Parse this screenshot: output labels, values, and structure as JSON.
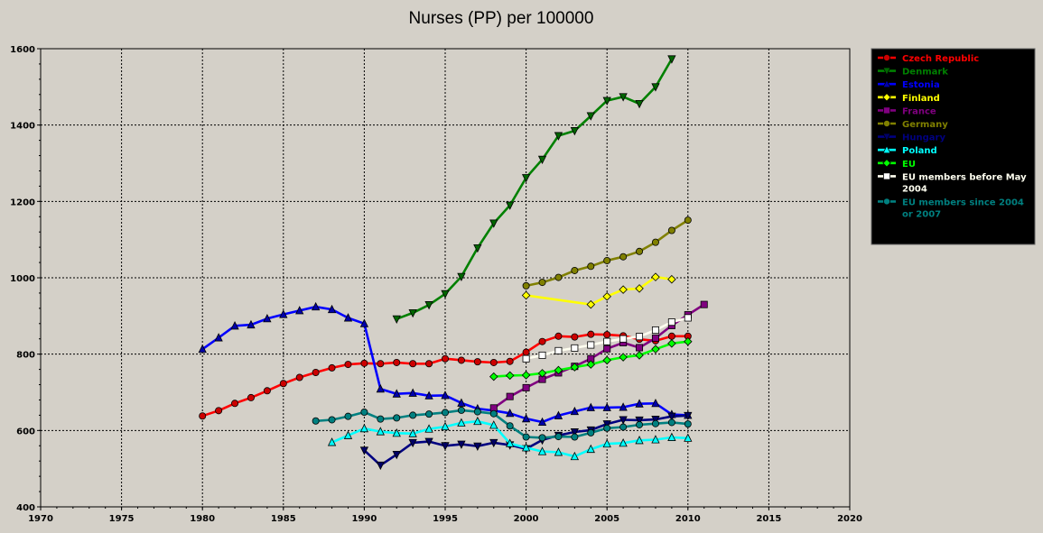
{
  "chart_data": {
    "type": "line",
    "title": "Nurses (PP) per 100000",
    "xlabel": "",
    "ylabel": "",
    "xlim": [
      1970,
      2020
    ],
    "ylim": [
      400,
      1600
    ],
    "x_ticks": [
      "1970",
      "1975",
      "1980",
      "1985",
      "1990",
      "1995",
      "2000",
      "2005",
      "2010",
      "2015",
      "2020"
    ],
    "y_ticks": [
      "400",
      "600",
      "800",
      "1000",
      "1200",
      "1400",
      "1600"
    ],
    "grid": true,
    "legend_position": "right",
    "series": [
      {
        "name": "Czech Republic",
        "color": "#ff0000",
        "marker": "circle",
        "marker_fill": "#cc0000",
        "x": [
          1980,
          1981,
          1982,
          1983,
          1984,
          1985,
          1986,
          1987,
          1988,
          1989,
          1990,
          1991,
          1992,
          1993,
          1994,
          1995,
          1996,
          1997,
          1998,
          1999,
          2000,
          2001,
          2002,
          2003,
          2004,
          2005,
          2006,
          2007,
          2008,
          2009,
          2010
        ],
        "y": [
          638,
          652,
          671,
          686,
          704,
          723,
          739,
          752,
          764,
          773,
          776,
          775,
          778,
          775,
          775,
          788,
          784,
          780,
          778,
          781,
          805,
          833,
          847,
          845,
          852,
          851,
          848,
          839,
          835,
          847,
          847
        ]
      },
      {
        "name": "Denmark",
        "color": "#008000",
        "marker": "tri-down",
        "marker_fill": "#006600",
        "x": [
          1992,
          1993,
          1994,
          1995,
          1996,
          1997,
          1998,
          1999,
          2000,
          2001,
          2002,
          2003,
          2004,
          2005,
          2006,
          2007,
          2008,
          2009
        ],
        "y": [
          892,
          908,
          929,
          958,
          1003,
          1078,
          1143,
          1190,
          1262,
          1310,
          1372,
          1385,
          1424,
          1464,
          1474,
          1456,
          1500,
          1573
        ]
      },
      {
        "name": "Estonia",
        "color": "#0000ff",
        "marker": "tri-up",
        "marker_fill": "#0000aa",
        "x": [
          1980,
          1981,
          1982,
          1983,
          1984,
          1985,
          1986,
          1987,
          1988,
          1989,
          1990,
          1991,
          1992,
          1993,
          1994,
          1995,
          1996,
          1997,
          1998,
          1999,
          2000,
          2001,
          2002,
          2003,
          2004,
          2005,
          2006,
          2007,
          2008,
          2009,
          2010
        ],
        "y": [
          813,
          843,
          874,
          877,
          893,
          904,
          914,
          924,
          917,
          895,
          880,
          709,
          696,
          698,
          691,
          692,
          672,
          657,
          652,
          645,
          631,
          622,
          639,
          650,
          660,
          660,
          661,
          670,
          671,
          642,
          640
        ]
      },
      {
        "name": "Finland",
        "color": "#ffff00",
        "marker": "diamond",
        "marker_fill": "#ffff00",
        "x": [
          2000,
          2004,
          2005,
          2006,
          2007,
          2008,
          2009
        ],
        "y": [
          954,
          930,
          951,
          969,
          972,
          1002,
          996
        ]
      },
      {
        "name": "France",
        "color": "#800080",
        "marker": "square",
        "marker_fill": "#800080",
        "x": [
          1998,
          1999,
          2000,
          2001,
          2002,
          2003,
          2004,
          2005,
          2006,
          2007,
          2008,
          2009,
          2010,
          2011
        ],
        "y": [
          659,
          689,
          712,
          734,
          751,
          768,
          788,
          814,
          830,
          817,
          842,
          875,
          903,
          930
        ]
      },
      {
        "name": "Germany",
        "color": "#808000",
        "marker": "circle",
        "marker_fill": "#808000",
        "x": [
          2000,
          2001,
          2002,
          2003,
          2004,
          2005,
          2006,
          2007,
          2008,
          2009,
          2010
        ],
        "y": [
          979,
          988,
          1001,
          1019,
          1030,
          1045,
          1055,
          1069,
          1093,
          1124,
          1151
        ]
      },
      {
        "name": "Hungary",
        "color": "#000080",
        "marker": "tri-down",
        "marker_fill": "#000066",
        "x": [
          1990,
          1991,
          1992,
          1993,
          1994,
          1995,
          1996,
          1997,
          1998,
          1999,
          2000,
          2001,
          2002,
          2003,
          2004,
          2005,
          2006,
          2007,
          2008,
          2009,
          2010
        ],
        "y": [
          548,
          509,
          537,
          568,
          571,
          560,
          564,
          559,
          568,
          562,
          552,
          575,
          587,
          596,
          601,
          617,
          628,
          627,
          629,
          637,
          639
        ]
      },
      {
        "name": "Poland",
        "color": "#00ffff",
        "marker": "tri-up",
        "marker_fill": "#00ffff",
        "x": [
          1988,
          1989,
          1990,
          1991,
          1992,
          1993,
          1994,
          1995,
          1996,
          1997,
          1998,
          1999,
          2000,
          2001,
          2002,
          2003,
          2004,
          2005,
          2006,
          2007,
          2008,
          2009,
          2010
        ],
        "y": [
          569,
          587,
          605,
          597,
          593,
          592,
          604,
          610,
          620,
          624,
          614,
          566,
          555,
          545,
          543,
          532,
          551,
          565,
          567,
          574,
          576,
          582,
          580
        ]
      },
      {
        "name": "EU",
        "color": "#00ff00",
        "marker": "diamond",
        "marker_fill": "#00ff00",
        "x": [
          1998,
          1999,
          2000,
          2001,
          2002,
          2003,
          2004,
          2005,
          2006,
          2007,
          2008,
          2009,
          2010
        ],
        "y": [
          741,
          744,
          745,
          750,
          758,
          766,
          773,
          784,
          792,
          797,
          813,
          828,
          833
        ]
      },
      {
        "name": "EU members before May 2004",
        "color": "#fffff0",
        "marker": "square-open",
        "marker_fill": "#ffffff",
        "x": [
          2000,
          2001,
          2002,
          2003,
          2004,
          2005,
          2006,
          2007,
          2008,
          2009,
          2010
        ],
        "y": [
          788,
          797,
          809,
          816,
          824,
          833,
          840,
          846,
          863,
          884,
          895
        ]
      },
      {
        "name": "EU members since 2004 or 2007",
        "color": "#008080",
        "marker": "circle",
        "marker_fill": "#008080",
        "x": [
          1987,
          1988,
          1989,
          1990,
          1991,
          1992,
          1993,
          1994,
          1995,
          1996,
          1997,
          1998,
          1999,
          2000,
          2001,
          2002,
          2003,
          2004,
          2005,
          2006,
          2007,
          2008,
          2009,
          2010
        ],
        "y": [
          625,
          628,
          637,
          648,
          630,
          633,
          640,
          643,
          647,
          653,
          649,
          644,
          612,
          583,
          581,
          584,
          583,
          594,
          606,
          609,
          615,
          618,
          621,
          617
        ]
      }
    ]
  },
  "legend": {
    "label_colors": [
      "#ff0000",
      "#008000",
      "#0000ff",
      "#ffff00",
      "#800080",
      "#808000",
      "#000080",
      "#00ffff",
      "#00ff00",
      "#fffff0",
      "#008080"
    ]
  }
}
